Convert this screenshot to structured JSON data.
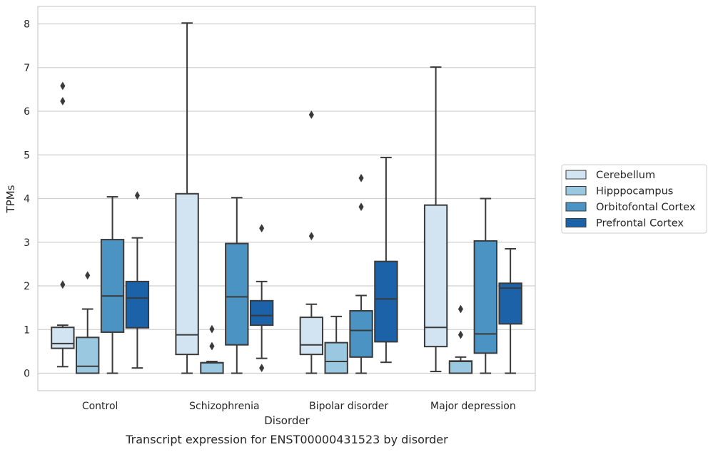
{
  "chart_data": {
    "type": "box",
    "title": "",
    "caption": "Transcript expression for ENST00000431523 by disorder",
    "xlabel": "Disorder",
    "ylabel": "TPMs",
    "ylim": [
      -0.4,
      8.4
    ],
    "yticks": [
      0,
      1,
      2,
      3,
      4,
      5,
      6,
      7,
      8
    ],
    "grid": true,
    "legend_position": "right",
    "categories": [
      "Control",
      "Schizophrenia",
      "Bipolar disorder",
      "Major depression"
    ],
    "series": [
      {
        "name": "Cerebellum",
        "color": "#d2e3f1",
        "boxes": [
          {
            "whislo": 0.15,
            "q1": 0.57,
            "med": 0.68,
            "q3": 1.05,
            "whishi": 1.1,
            "fliers": [
              2.03,
              6.23,
              6.58
            ]
          },
          {
            "whislo": 0.0,
            "q1": 0.43,
            "med": 0.88,
            "q3": 4.11,
            "whishi": 8.02,
            "fliers": []
          },
          {
            "whislo": 0.0,
            "q1": 0.43,
            "med": 0.65,
            "q3": 1.28,
            "whishi": 1.58,
            "fliers": [
              3.14,
              5.92
            ]
          },
          {
            "whislo": 0.04,
            "q1": 0.61,
            "med": 1.05,
            "q3": 3.85,
            "whishi": 7.01,
            "fliers": []
          }
        ]
      },
      {
        "name": "Hipppocampus",
        "color": "#9ac8e0",
        "boxes": [
          {
            "whislo": 0.0,
            "q1": 0.0,
            "med": 0.16,
            "q3": 0.82,
            "whishi": 1.47,
            "fliers": [
              2.24
            ]
          },
          {
            "whislo": 0.0,
            "q1": 0.0,
            "med": 0.24,
            "q3": 0.24,
            "whishi": 0.27,
            "fliers": [
              0.62,
              1.01
            ]
          },
          {
            "whislo": 0.0,
            "q1": 0.0,
            "med": 0.27,
            "q3": 0.7,
            "whishi": 1.3,
            "fliers": []
          },
          {
            "whislo": 0.0,
            "q1": 0.0,
            "med": 0.27,
            "q3": 0.28,
            "whishi": 0.37,
            "fliers": [
              0.88,
              1.47
            ]
          }
        ]
      },
      {
        "name": "Orbitofontal Cortex",
        "color": "#4b93c3",
        "boxes": [
          {
            "whislo": 0.0,
            "q1": 0.94,
            "med": 1.77,
            "q3": 3.06,
            "whishi": 4.04,
            "fliers": []
          },
          {
            "whislo": 0.0,
            "q1": 0.65,
            "med": 1.75,
            "q3": 2.97,
            "whishi": 4.02,
            "fliers": []
          },
          {
            "whislo": 0.0,
            "q1": 0.37,
            "med": 0.98,
            "q3": 1.43,
            "whishi": 1.78,
            "fliers": [
              3.81,
              4.47
            ]
          },
          {
            "whislo": 0.0,
            "q1": 0.46,
            "med": 0.9,
            "q3": 3.03,
            "whishi": 4.0,
            "fliers": []
          }
        ]
      },
      {
        "name": "Prefrontal Cortex",
        "color": "#1c62a8",
        "boxes": [
          {
            "whislo": 0.12,
            "q1": 1.04,
            "med": 1.72,
            "q3": 2.1,
            "whishi": 3.1,
            "fliers": [
              4.07
            ]
          },
          {
            "whislo": 0.34,
            "q1": 1.1,
            "med": 1.32,
            "q3": 1.66,
            "whishi": 2.1,
            "fliers": [
              0.12,
              3.32
            ]
          },
          {
            "whislo": 0.25,
            "q1": 0.72,
            "med": 1.7,
            "q3": 2.56,
            "whishi": 4.94,
            "fliers": []
          },
          {
            "whislo": 0.0,
            "q1": 1.13,
            "med": 1.95,
            "q3": 2.06,
            "whishi": 2.85,
            "fliers": []
          }
        ]
      }
    ]
  }
}
